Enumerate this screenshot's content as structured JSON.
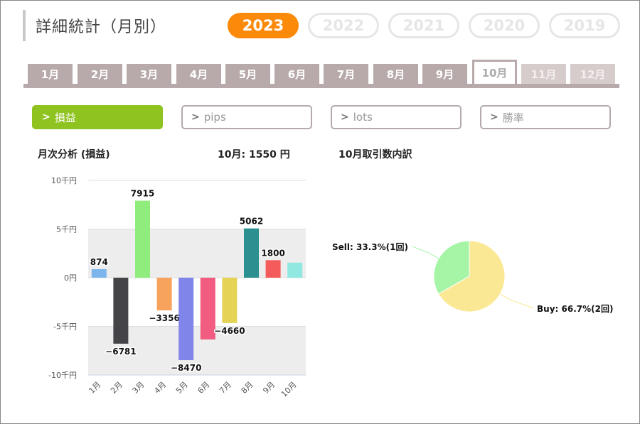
{
  "page_title": "詳細統計（月別）",
  "years": [
    {
      "label": "2023",
      "active": true
    },
    {
      "label": "2022",
      "active": false
    },
    {
      "label": "2021",
      "active": false
    },
    {
      "label": "2020",
      "active": false
    },
    {
      "label": "2019",
      "active": false
    }
  ],
  "months": [
    {
      "label": "1月",
      "state": "normal"
    },
    {
      "label": "2月",
      "state": "normal"
    },
    {
      "label": "3月",
      "state": "normal"
    },
    {
      "label": "4月",
      "state": "normal"
    },
    {
      "label": "5月",
      "state": "normal"
    },
    {
      "label": "6月",
      "state": "normal"
    },
    {
      "label": "7月",
      "state": "normal"
    },
    {
      "label": "8月",
      "state": "normal"
    },
    {
      "label": "9月",
      "state": "normal"
    },
    {
      "label": "10月",
      "state": "active"
    },
    {
      "label": "11月",
      "state": "future"
    },
    {
      "label": "12月",
      "state": "future"
    }
  ],
  "metrics": [
    {
      "label": "損益",
      "active": true
    },
    {
      "label": "pips",
      "active": false
    },
    {
      "label": "lots",
      "active": false
    },
    {
      "label": "勝率",
      "active": false
    }
  ],
  "monthly_header": {
    "title": "月次分析 (損益)",
    "summary": "10月:  1550 円"
  },
  "breakdown_header": {
    "title": "10月取引数内訳"
  },
  "colors": {
    "accent_year": "#fb8a0b",
    "accent_metric": "#8fc31f",
    "tab": "#b8aaaa"
  },
  "chart_data": [
    {
      "type": "bar",
      "categories": [
        "1月",
        "2月",
        "3月",
        "4月",
        "5月",
        "6月",
        "7月",
        "8月",
        "9月",
        "10月"
      ],
      "values": [
        874,
        -6781,
        7915,
        -3356,
        -8470,
        -6350,
        -4660,
        5062,
        1800,
        1550
      ],
      "data_labels": [
        "874",
        "−6781",
        "7915",
        "−3356",
        "−8470",
        "",
        "−4660",
        "5062",
        "1800",
        ""
      ],
      "colors": [
        "#7cb5ec",
        "#434348",
        "#90ed7d",
        "#f7a35c",
        "#8085e9",
        "#f15c80",
        "#e4d354",
        "#2b908f",
        "#f45b5b",
        "#91e8e1"
      ],
      "yticks": [
        10000,
        5000,
        0,
        -5000,
        -10000
      ],
      "ytick_labels": [
        "10千円",
        "5千円",
        "0円",
        "-5千円",
        "-10千円"
      ],
      "ylim": [
        -10000,
        10000
      ],
      "banded_background": true,
      "legend": false
    },
    {
      "type": "pie",
      "labels": [
        "Sell: 33.3%(1回)",
        "Buy: 66.7%(2回)"
      ],
      "values": [
        33.3,
        66.7
      ],
      "colors": [
        "#a6f5a6",
        "#fbe894"
      ]
    }
  ]
}
